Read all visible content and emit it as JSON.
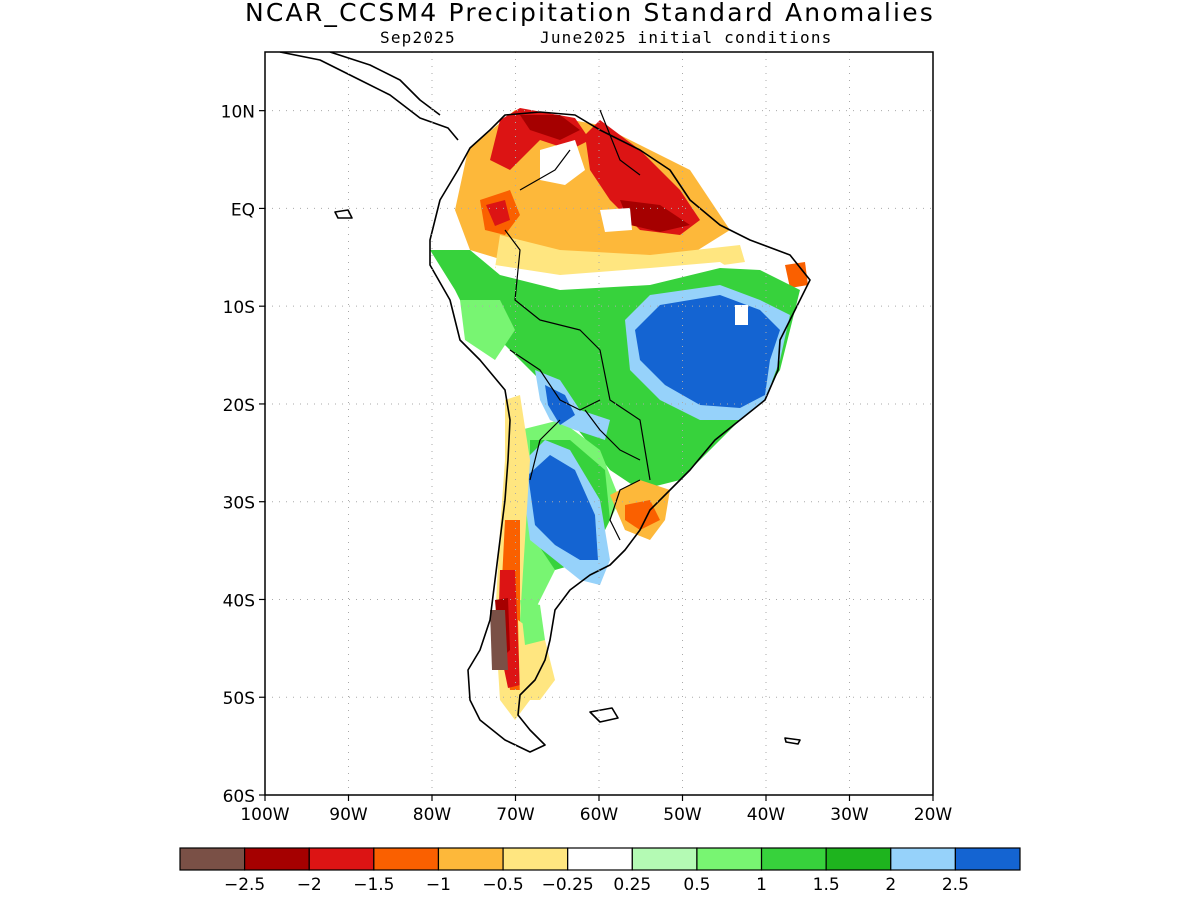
{
  "header": {
    "title": "NCAR_CCSM4 Precipitation Standard Anomalies",
    "subtitle_left": "Sep2025",
    "subtitle_right": "June2025 initial conditions"
  },
  "map": {
    "lat_labels": [
      "10N",
      "EQ",
      "10S",
      "20S",
      "30S",
      "40S",
      "50S",
      "60S"
    ],
    "lon_labels": [
      "100W",
      "90W",
      "80W",
      "70W",
      "60W",
      "50W",
      "40W",
      "30W",
      "20W"
    ],
    "lat_values": [
      10,
      0,
      -10,
      -20,
      -30,
      -40,
      -50,
      -60
    ],
    "lon_values": [
      -100,
      -90,
      -80,
      -70,
      -60,
      -50,
      -40,
      -30,
      -20
    ],
    "extent": {
      "lon_min": -100,
      "lon_max": -20,
      "lat_min": -60,
      "lat_max": 16
    },
    "grid": "dotted",
    "coastline_color": "#000000"
  },
  "colorbar": {
    "colors": [
      "#7a5046",
      "#a50000",
      "#dc1414",
      "#fa6000",
      "#fdb83a",
      "#ffe680",
      "#ffffff",
      "#b4fab4",
      "#78f572",
      "#37d23c",
      "#1eb41e",
      "#96d2fa",
      "#1464d2"
    ],
    "labels": [
      "−2.5",
      "−2",
      "−1.5",
      "−1",
      "−0.5",
      "−0.25",
      "0.25",
      "0.5",
      "1",
      "1.5",
      "2",
      "2.5"
    ]
  }
}
